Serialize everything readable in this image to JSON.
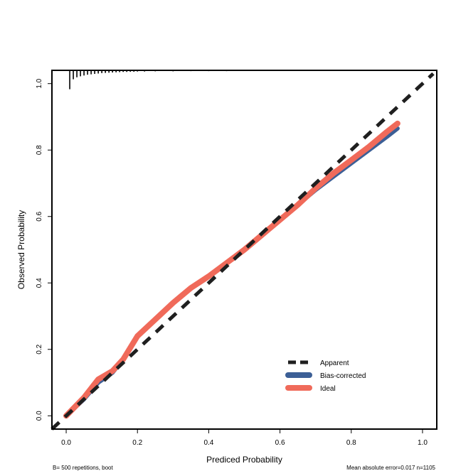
{
  "chart_data": {
    "type": "line",
    "xlabel": "Prediced Probability",
    "ylabel": "Observed Probability",
    "xlim": [
      -0.04,
      1.04
    ],
    "ylim": [
      -0.04,
      1.04
    ],
    "x_ticks": [
      {
        "value": 0.0,
        "label": "0.0"
      },
      {
        "value": 0.2,
        "label": "0.2"
      },
      {
        "value": 0.4,
        "label": "0.4"
      },
      {
        "value": 0.6,
        "label": "0.6"
      },
      {
        "value": 0.8,
        "label": "0.8"
      },
      {
        "value": 1.0,
        "label": "1.0"
      }
    ],
    "y_ticks": [
      {
        "value": 0.0,
        "label": "0.0"
      },
      {
        "value": 0.2,
        "label": "0.2"
      },
      {
        "value": 0.4,
        "label": "0.4"
      },
      {
        "value": 0.6,
        "label": "0.6"
      },
      {
        "value": 0.8,
        "label": "0.8"
      },
      {
        "value": 1.0,
        "label": "1.0"
      }
    ],
    "grid": false,
    "legend_position": "bottom-right",
    "series": [
      {
        "name": "Apparent",
        "color": "#1f1f1f",
        "style": "dashed",
        "x": [
          -0.04,
          1.03
        ],
        "y": [
          -0.04,
          1.03
        ]
      },
      {
        "name": "Bias-corrected",
        "color": "#3c5f96",
        "style": "solid",
        "x": [
          0.0,
          0.05,
          0.09,
          0.13,
          0.16,
          0.2,
          0.25,
          0.3,
          0.35,
          0.4,
          0.45,
          0.5,
          0.55,
          0.6,
          0.65,
          0.7,
          0.75,
          0.8,
          0.85,
          0.9,
          0.93
        ],
        "y": [
          0.0,
          0.05,
          0.1,
          0.13,
          0.17,
          0.24,
          0.29,
          0.34,
          0.385,
          0.42,
          0.46,
          0.5,
          0.545,
          0.59,
          0.635,
          0.68,
          0.72,
          0.76,
          0.8,
          0.84,
          0.865
        ]
      },
      {
        "name": "Ideal",
        "color": "#f06a5a",
        "style": "solid",
        "x": [
          0.0,
          0.05,
          0.09,
          0.13,
          0.16,
          0.2,
          0.25,
          0.3,
          0.35,
          0.4,
          0.45,
          0.5,
          0.55,
          0.6,
          0.65,
          0.7,
          0.75,
          0.8,
          0.85,
          0.9,
          0.93
        ],
        "y": [
          0.0,
          0.055,
          0.11,
          0.135,
          0.17,
          0.24,
          0.29,
          0.34,
          0.385,
          0.42,
          0.46,
          0.5,
          0.545,
          0.59,
          0.635,
          0.685,
          0.73,
          0.77,
          0.81,
          0.855,
          0.88
        ]
      }
    ],
    "rug": {
      "x": [
        0.01,
        0.02,
        0.03,
        0.04,
        0.05,
        0.06,
        0.07,
        0.08,
        0.09,
        0.1,
        0.11,
        0.12,
        0.13,
        0.14,
        0.15,
        0.16,
        0.17,
        0.18,
        0.19,
        0.2,
        0.22,
        0.25,
        0.3,
        0.35,
        0.4,
        0.45,
        0.5,
        0.55,
        0.6,
        0.65,
        0.7,
        0.75,
        0.8,
        0.85,
        0.9
      ],
      "height": [
        0.95,
        0.45,
        0.35,
        0.3,
        0.26,
        0.22,
        0.2,
        0.18,
        0.16,
        0.14,
        0.13,
        0.12,
        0.11,
        0.1,
        0.09,
        0.08,
        0.08,
        0.07,
        0.07,
        0.06,
        0.06,
        0.05,
        0.05,
        0.04,
        0.04,
        0.04,
        0.03,
        0.03,
        0.03,
        0.03,
        0.03,
        0.03,
        0.03,
        0.03,
        0.03
      ]
    },
    "footnote_left": "B= 500 repetitions, boot",
    "footnote_right": "Mean absolute error=0.017 n=1105"
  }
}
